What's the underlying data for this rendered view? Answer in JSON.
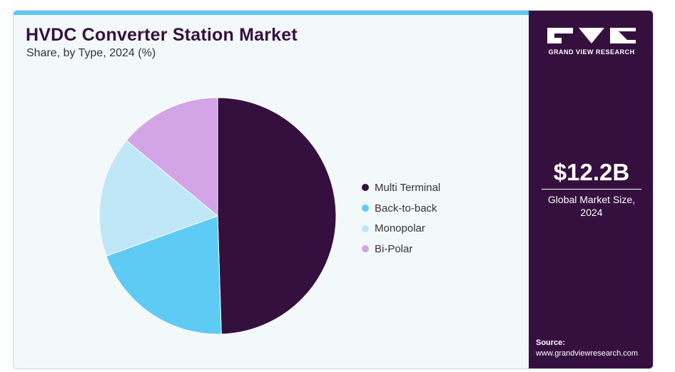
{
  "chart_data": {
    "type": "pie",
    "title": "HVDC Converter Station Market",
    "subtitle": "Share, by Type, 2024 (%)",
    "categories": [
      "Multi Terminal",
      "Back-to-back",
      "Monopolar",
      "Bi-Polar"
    ],
    "values": [
      49.5,
      20.0,
      16.5,
      14.0
    ],
    "colors": [
      "#35103f",
      "#5ecbf4",
      "#bfe7f8",
      "#d3a5e6"
    ],
    "legend_position": "right"
  },
  "sidebar": {
    "brand": "GRAND VIEW RESEARCH",
    "market_value": "$12.2B",
    "market_caption": "Global Market Size, 2024",
    "source_label": "Source:",
    "source_url": "www.grandviewresearch.com"
  },
  "colors": {
    "accent_bar": "#5ec8f2",
    "sidebar_bg": "#35103f",
    "panel_bg": "#f3f8fb"
  }
}
